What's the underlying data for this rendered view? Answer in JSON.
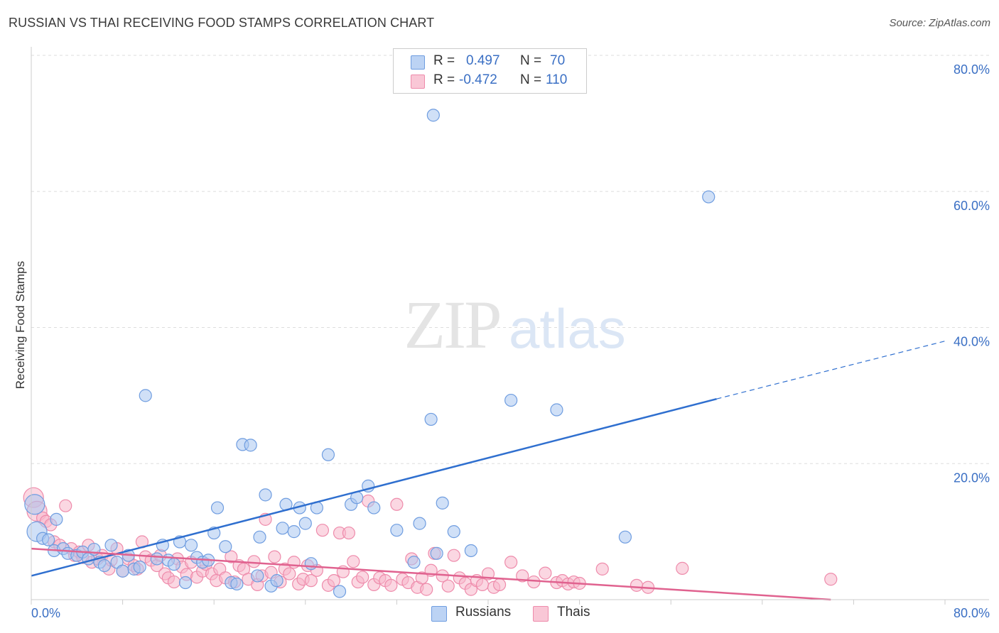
{
  "header": {
    "title": "RUSSIAN VS THAI RECEIVING FOOD STAMPS CORRELATION CHART",
    "source": "Source: ZipAtlas.com"
  },
  "watermark": {
    "zip": "ZIP",
    "atlas": "atlas"
  },
  "legend": {
    "rows": [
      {
        "r_label": "R =",
        "r_value": "0.497",
        "n_label": "N =",
        "n_value": "70"
      },
      {
        "r_label": "R =",
        "r_value": "-0.472",
        "n_label": "N =",
        "n_value": "110"
      }
    ]
  },
  "colors": {
    "russians_fill": "#a9c6f0",
    "russians_stroke": "#6f9de0",
    "russians_line": "#2f6fcf",
    "thais_fill": "#f7b7cb",
    "thais_stroke": "#ee8bab",
    "thais_line": "#e0628f",
    "tick_label": "#3a6fc4",
    "grid": "#dddddd"
  },
  "chart_data": {
    "type": "scatter",
    "ylabel": "Receiving Food Stamps",
    "xlim": [
      0,
      80
    ],
    "ylim": [
      0,
      80
    ],
    "x_tick_labels": [
      "0.0%",
      "80.0%"
    ],
    "y_ticks": [
      20,
      40,
      60,
      80
    ],
    "y_tick_labels": [
      "20.0%",
      "40.0%",
      "60.0%",
      "80.0%"
    ],
    "grid": "horizontal dashed",
    "series": [
      {
        "name": "Russians",
        "r": 0.497,
        "n": 70,
        "trend": {
          "x": [
            0,
            60
          ],
          "y": [
            3.5,
            29.5
          ],
          "dashed_to": [
            80,
            38
          ]
        },
        "points": [
          [
            0.3,
            14.0
          ],
          [
            0.5,
            10.0
          ],
          [
            1.0,
            9.0
          ],
          [
            1.5,
            8.8
          ],
          [
            2.0,
            7.2
          ],
          [
            2.2,
            11.8
          ],
          [
            2.8,
            7.5
          ],
          [
            3.2,
            6.8
          ],
          [
            4.0,
            6.5
          ],
          [
            4.5,
            7.0
          ],
          [
            5.0,
            6.0
          ],
          [
            5.5,
            7.4
          ],
          [
            6.0,
            5.5
          ],
          [
            6.4,
            5.0
          ],
          [
            7.0,
            8.0
          ],
          [
            7.5,
            5.5
          ],
          [
            8.0,
            4.2
          ],
          [
            8.5,
            6.5
          ],
          [
            9.0,
            4.5
          ],
          [
            9.5,
            4.8
          ],
          [
            10.0,
            30.0
          ],
          [
            11.0,
            6.0
          ],
          [
            11.5,
            8.0
          ],
          [
            12.0,
            5.8
          ],
          [
            12.5,
            5.2
          ],
          [
            13.0,
            8.5
          ],
          [
            13.5,
            2.5
          ],
          [
            14.0,
            8.0
          ],
          [
            14.5,
            6.2
          ],
          [
            15.0,
            5.5
          ],
          [
            15.5,
            5.8
          ],
          [
            16.0,
            9.8
          ],
          [
            16.3,
            13.5
          ],
          [
            17.0,
            7.8
          ],
          [
            17.5,
            2.5
          ],
          [
            18.0,
            2.3
          ],
          [
            18.5,
            22.8
          ],
          [
            19.2,
            22.7
          ],
          [
            19.8,
            3.5
          ],
          [
            20.0,
            9.2
          ],
          [
            20.5,
            15.4
          ],
          [
            21.0,
            2.0
          ],
          [
            21.5,
            2.8
          ],
          [
            22.0,
            10.5
          ],
          [
            22.3,
            14.0
          ],
          [
            23.0,
            10.0
          ],
          [
            23.5,
            13.5
          ],
          [
            24.0,
            11.2
          ],
          [
            24.5,
            5.3
          ],
          [
            25.0,
            13.5
          ],
          [
            26.0,
            21.3
          ],
          [
            27.0,
            1.2
          ],
          [
            28.0,
            14.0
          ],
          [
            28.5,
            15.0
          ],
          [
            29.5,
            16.7
          ],
          [
            30.0,
            13.5
          ],
          [
            32.0,
            10.2
          ],
          [
            33.5,
            5.5
          ],
          [
            34.0,
            11.2
          ],
          [
            35.0,
            26.5
          ],
          [
            35.5,
            6.8
          ],
          [
            36.0,
            14.2
          ],
          [
            37.0,
            10.0
          ],
          [
            38.5,
            7.2
          ],
          [
            42.0,
            29.3
          ],
          [
            46.0,
            27.9
          ],
          [
            52.0,
            9.2
          ],
          [
            35.2,
            71.2
          ],
          [
            59.3,
            59.2
          ]
        ]
      },
      {
        "name": "Thais",
        "r": -0.472,
        "n": 110,
        "trend": {
          "x": [
            0,
            70
          ],
          "y": [
            7.5,
            0.0
          ]
        },
        "points": [
          [
            0.2,
            15.0
          ],
          [
            0.5,
            13.0
          ],
          [
            1.0,
            12.0
          ],
          [
            1.3,
            11.5
          ],
          [
            1.7,
            11.0
          ],
          [
            2.0,
            8.5
          ],
          [
            2.5,
            8.0
          ],
          [
            3.0,
            13.8
          ],
          [
            3.5,
            7.5
          ],
          [
            3.8,
            6.5
          ],
          [
            4.2,
            7.0
          ],
          [
            4.5,
            6.2
          ],
          [
            5.0,
            8.0
          ],
          [
            5.3,
            5.5
          ],
          [
            5.8,
            6.0
          ],
          [
            6.2,
            6.5
          ],
          [
            6.8,
            4.5
          ],
          [
            7.0,
            5.8
          ],
          [
            7.5,
            7.5
          ],
          [
            8.0,
            4.2
          ],
          [
            8.5,
            6.0
          ],
          [
            9.0,
            5.0
          ],
          [
            9.3,
            4.5
          ],
          [
            9.7,
            8.5
          ],
          [
            10.0,
            6.3
          ],
          [
            10.5,
            5.8
          ],
          [
            11.0,
            5.0
          ],
          [
            11.3,
            6.5
          ],
          [
            11.7,
            3.8
          ],
          [
            12.0,
            3.2
          ],
          [
            12.5,
            2.6
          ],
          [
            12.8,
            6.0
          ],
          [
            13.2,
            4.8
          ],
          [
            13.6,
            3.7
          ],
          [
            14.0,
            5.5
          ],
          [
            14.5,
            3.3
          ],
          [
            15.0,
            4.2
          ],
          [
            15.3,
            5.2
          ],
          [
            15.8,
            3.8
          ],
          [
            16.2,
            2.8
          ],
          [
            16.5,
            4.5
          ],
          [
            17.0,
            3.2
          ],
          [
            17.5,
            6.3
          ],
          [
            17.8,
            2.6
          ],
          [
            18.2,
            5.0
          ],
          [
            18.6,
            4.5
          ],
          [
            19.0,
            3.0
          ],
          [
            19.5,
            5.6
          ],
          [
            19.8,
            2.2
          ],
          [
            20.2,
            3.5
          ],
          [
            20.5,
            11.8
          ],
          [
            21.0,
            4.0
          ],
          [
            21.3,
            6.3
          ],
          [
            21.8,
            2.6
          ],
          [
            22.2,
            4.5
          ],
          [
            22.6,
            3.8
          ],
          [
            23.0,
            5.5
          ],
          [
            23.4,
            2.3
          ],
          [
            23.8,
            3.0
          ],
          [
            24.2,
            5.0
          ],
          [
            24.5,
            2.8
          ],
          [
            25.0,
            4.3
          ],
          [
            25.5,
            10.2
          ],
          [
            26.0,
            2.1
          ],
          [
            26.5,
            2.8
          ],
          [
            27.0,
            9.8
          ],
          [
            27.3,
            4.1
          ],
          [
            27.8,
            9.8
          ],
          [
            28.2,
            5.6
          ],
          [
            28.6,
            2.6
          ],
          [
            29.0,
            3.3
          ],
          [
            29.5,
            14.5
          ],
          [
            30.0,
            2.2
          ],
          [
            30.5,
            3.2
          ],
          [
            31.0,
            2.8
          ],
          [
            31.5,
            2.1
          ],
          [
            32.0,
            14.0
          ],
          [
            32.5,
            3.0
          ],
          [
            33.0,
            2.5
          ],
          [
            33.3,
            6.0
          ],
          [
            33.8,
            1.8
          ],
          [
            34.2,
            3.2
          ],
          [
            34.6,
            1.5
          ],
          [
            35.0,
            4.3
          ],
          [
            35.3,
            6.8
          ],
          [
            36.0,
            3.5
          ],
          [
            36.5,
            2.0
          ],
          [
            37.0,
            6.5
          ],
          [
            37.5,
            3.2
          ],
          [
            38.0,
            2.4
          ],
          [
            38.5,
            1.5
          ],
          [
            39.0,
            2.8
          ],
          [
            39.5,
            2.2
          ],
          [
            40.0,
            3.8
          ],
          [
            40.5,
            1.8
          ],
          [
            41.0,
            2.2
          ],
          [
            42.0,
            5.5
          ],
          [
            43.0,
            3.5
          ],
          [
            44.0,
            2.6
          ],
          [
            45.0,
            3.9
          ],
          [
            46.0,
            2.5
          ],
          [
            46.5,
            2.8
          ],
          [
            47.0,
            2.3
          ],
          [
            47.5,
            2.6
          ],
          [
            48.0,
            2.4
          ],
          [
            50.0,
            4.5
          ],
          [
            53.0,
            2.1
          ],
          [
            54.0,
            1.8
          ],
          [
            57.0,
            4.6
          ],
          [
            70.0,
            3.0
          ]
        ]
      }
    ]
  },
  "bottom_legend": {
    "items": [
      "Russians",
      "Thais"
    ]
  }
}
